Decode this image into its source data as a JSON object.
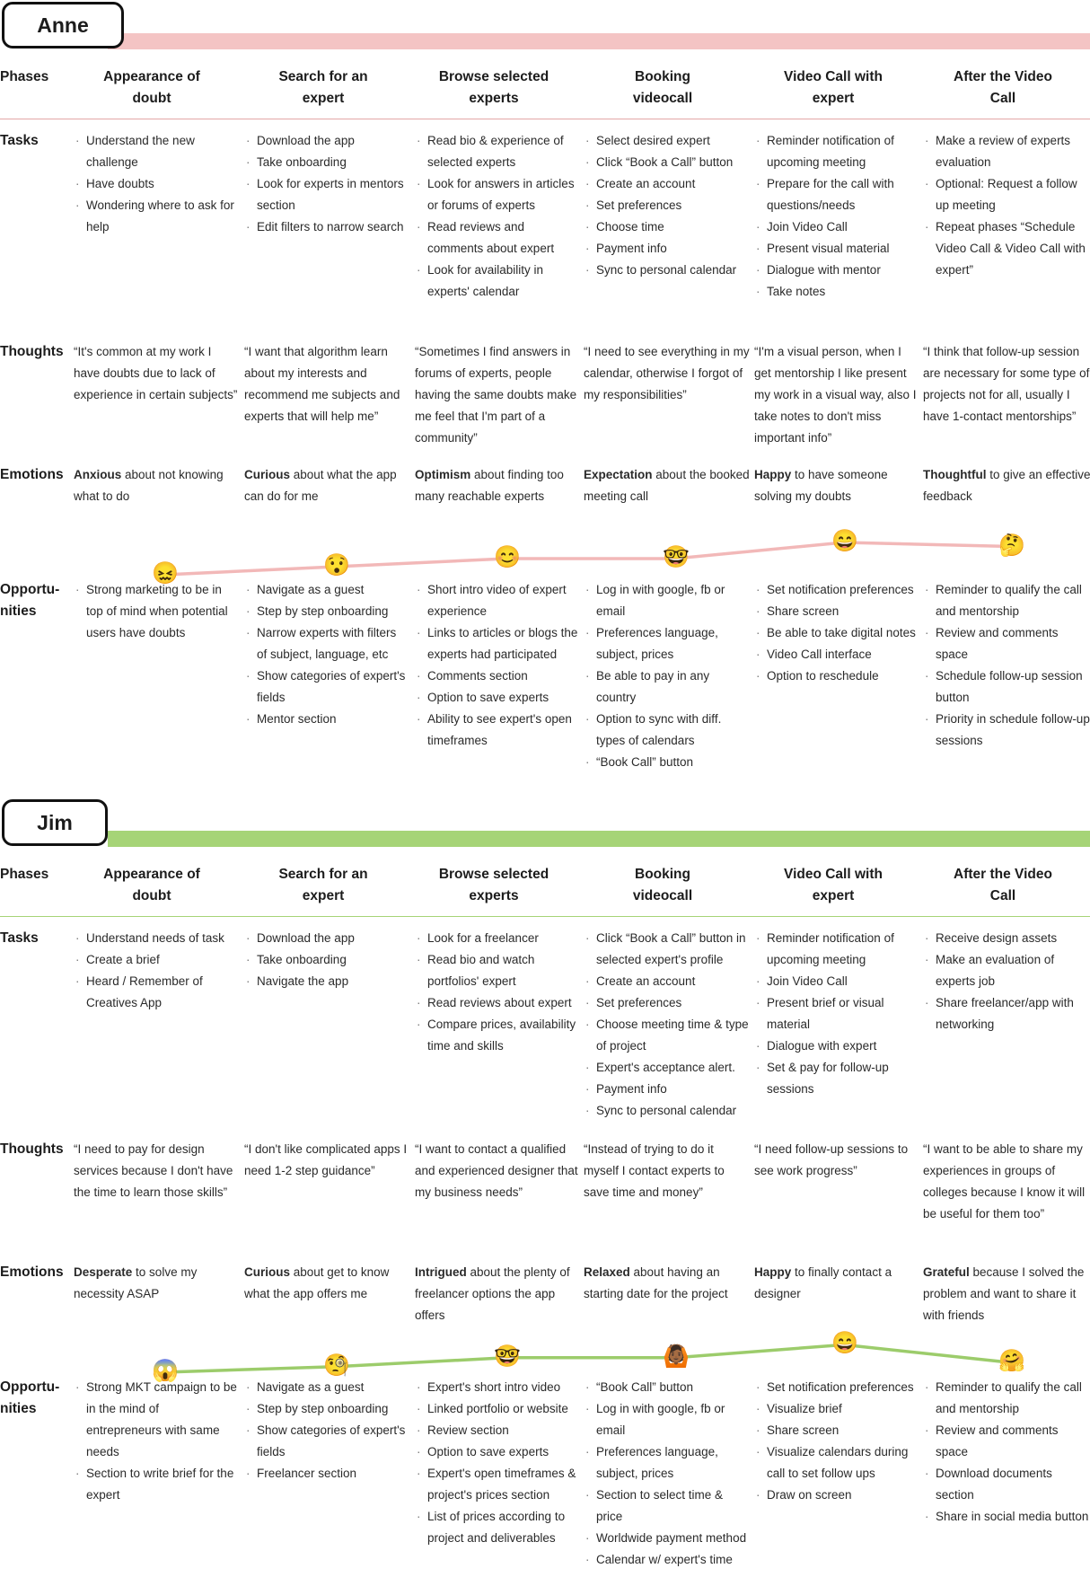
{
  "phase_label": "Phases",
  "row_labels": {
    "tasks": "Tasks",
    "thoughts": "Thoughts",
    "emotions": "Emotions",
    "opportunities": "Opportu-\nnities"
  },
  "colors": {
    "anne_accent": "#f4c4c4",
    "jim_accent": "#a6d477"
  },
  "personas": [
    {
      "name": "Anne",
      "phases": [
        "Appearance of doubt",
        "Search for an expert",
        "Browse selected experts",
        "Booking videocall",
        "Video Call with expert",
        "After the Video Call"
      ],
      "tasks": [
        [
          "Understand the new challenge",
          "Have doubts",
          "Wondering where to ask for help"
        ],
        [
          "Download the app",
          "Take onboarding",
          "Look for experts in mentors section",
          "Edit filters to narrow search"
        ],
        [
          "Read bio & experience of selected experts",
          "Look for answers in articles or forums of experts",
          "Read reviews and comments about expert",
          "Look for availability in experts' calendar"
        ],
        [
          "Select desired expert",
          "Click “Book a Call” button",
          "Create an account",
          "Set preferences",
          "Choose time",
          "Payment info",
          "Sync to personal calendar"
        ],
        [
          "Reminder notification of upcoming meeting",
          "Prepare for the call with questions/needs",
          "Join Video Call",
          "Present visual material",
          "Dialogue with mentor",
          "Take notes"
        ],
        [
          "Make a review of experts evaluation",
          "Optional: Request a follow up meeting",
          "Repeat phases “Schedule Video Call & Video Call with expert”"
        ]
      ],
      "thoughts": [
        "“It's common at my work I have doubts due to lack of experience in certain subjects”",
        "“I want that algorithm learn about my interests and recommend me subjects and experts that will help me”",
        "“Sometimes I find answers in forums of experts, people having the same doubts make me feel that I'm part of a community”",
        "“I need to see everything in my calendar, otherwise I forgot of my responsibilities”",
        "“I'm a visual person, when I get mentorship I like present my work in a visual way, also I take notes to don't miss important info”",
        "“I think that follow-up session are necessary for some type of projects not for all, usually I have 1-contact mentorships”"
      ],
      "emotions": [
        {
          "strong": "Anxious",
          "rest": " about not knowing what to do",
          "emoji": "😖",
          "level": 1
        },
        {
          "strong": "Curious",
          "rest": " about what the app can do for me",
          "emoji": "😯",
          "level": 2
        },
        {
          "strong": "Optimism",
          "rest": " about finding too many reachable experts",
          "emoji": "😊",
          "level": 3
        },
        {
          "strong": "Expectation",
          "rest": " about the booked meeting call",
          "emoji": "🤓",
          "level": 3
        },
        {
          "strong": "Happy",
          "rest": " to have someone solving my doubts",
          "emoji": "😄",
          "level": 5
        },
        {
          "strong": "Thoughtful",
          "rest": " to give an effective feedback",
          "emoji": "🤔",
          "level": 4.5
        }
      ],
      "opportunities": [
        [
          "Strong marketing to be in top of mind when potential users have doubts"
        ],
        [
          "Navigate as a guest",
          "Step by step onboarding",
          "Narrow experts with filters of subject, language, etc",
          "Show categories of expert's fields",
          "Mentor section"
        ],
        [
          "Short intro video of expert experience",
          "Links to articles or blogs the experts had participated",
          "Comments section",
          "Option to save experts",
          "Ability to see expert's open timeframes"
        ],
        [
          "Log in with google, fb or email",
          "Preferences language, subject, prices",
          "Be able to pay in any country",
          "Option to sync with diff. types of calendars",
          "“Book Call” button"
        ],
        [
          "Set notification preferences",
          "Share screen",
          "Be able to take digital notes",
          "Video Call interface",
          "Option to reschedule"
        ],
        [
          "Reminder to qualify the call and mentorship",
          "Review and comments space",
          "Schedule follow-up session button",
          "Priority in schedule follow-up sessions"
        ]
      ]
    },
    {
      "name": "Jim",
      "phases": [
        "Appearance of doubt",
        "Search for an expert",
        "Browse selected experts",
        "Booking videocall",
        "Video Call with expert",
        "After the Video Call"
      ],
      "tasks": [
        [
          "Understand needs of task",
          "Create a brief",
          "Heard / Remember of Creatives App"
        ],
        [
          "Download the app",
          "Take onboarding",
          "Navigate the app"
        ],
        [
          "Look for a freelancer",
          "Read bio and watch portfolios' expert",
          "Read reviews about expert",
          "Compare prices, availability time and skills"
        ],
        [
          "Click “Book a Call” button in selected expert's profile",
          "Create an account",
          "Set preferences",
          "Choose meeting time & type of project",
          "Expert's acceptance alert.",
          "Payment info",
          "Sync to personal calendar"
        ],
        [
          "Reminder notification of upcoming meeting",
          "Join Video Call",
          "Present brief or visual material",
          "Dialogue with expert",
          "Set & pay for follow-up sessions"
        ],
        [
          "Receive design assets",
          "Make an evaluation of experts job",
          "Share freelancer/app with networking"
        ]
      ],
      "thoughts": [
        "“I need to pay for design services because I don't have the time to learn those skills”",
        "“I don't like complicated apps I need 1-2 step guidance”",
        "“I want to contact a qualified and experienced designer that my business needs”",
        "“Instead of trying to do it myself I contact experts to save time and money”",
        "“I need follow-up sessions to see work progress”",
        "“I want to be able to share my experiences in groups of colleges because I know it will be useful for them too”"
      ],
      "emotions": [
        {
          "strong": "Desperate",
          "rest": " to solve my necessity ASAP",
          "emoji": "😱",
          "level": 1
        },
        {
          "strong": "Curious",
          "rest": " about get to know what the app offers me",
          "emoji": "🧐",
          "level": 1.7
        },
        {
          "strong": "Intrigued",
          "rest": " about the plenty of freelancer options the app offers",
          "emoji": "🤓",
          "level": 2.8
        },
        {
          "strong": "Relaxed",
          "rest": " about having an starting date for the project",
          "emoji": "🙆🏾",
          "level": 2.8
        },
        {
          "strong": "Happy",
          "rest": " to finally contact a designer",
          "emoji": "😄",
          "level": 4.4
        },
        {
          "strong": "Grateful",
          "rest": " because I solved the problem and want to share it with friends",
          "emoji": "🤗",
          "level": 2.2
        }
      ],
      "opportunities": [
        [
          "Strong MKT campaign to be in the mind of entrepreneurs with same needs",
          "Section to write brief for the expert"
        ],
        [
          "Navigate as a guest",
          "Step by step onboarding",
          "Show categories of expert's fields",
          "Freelancer section"
        ],
        [
          "Expert's short intro video",
          "Linked portfolio or website",
          "Review section",
          "Option to save experts",
          "Expert's open timeframes & project's prices section",
          "List of prices according to project and deliverables"
        ],
        [
          "“Book Call” button",
          "Log in with google, fb or email",
          "Preferences language, subject, prices",
          "Section to select time & price",
          "Worldwide payment method",
          "Calendar w/ expert's time"
        ],
        [
          "Set notification preferences",
          "Visualize brief",
          "Share screen",
          "Visualize calendars during call to set follow ups",
          "Draw on screen"
        ],
        [
          "Reminder to qualify the call  and mentorship",
          "Review and comments space",
          "Download documents section",
          "Share in social media button"
        ]
      ]
    }
  ]
}
